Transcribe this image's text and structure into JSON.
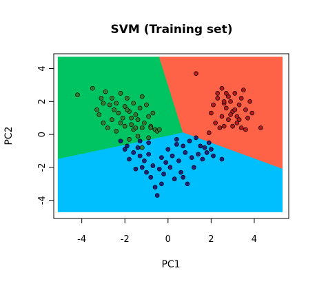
{
  "chart_data": {
    "type": "scatter",
    "title": "SVM (Training set)",
    "xlabel": "PC1",
    "ylabel": "PC2",
    "xlim": [
      -5.3,
      5.6
    ],
    "ylim": [
      -5.1,
      4.9
    ],
    "xticks": [
      -4,
      -2,
      0,
      2,
      4
    ],
    "yticks": [
      -4,
      -2,
      0,
      2,
      4
    ],
    "region_colors": {
      "green": "#00C462",
      "red": "#FF6347",
      "blue": "#00BFFF"
    },
    "regions": {
      "green": [
        [
          -5.1,
          4.7
        ],
        [
          -0.4,
          4.7
        ],
        [
          0.7,
          0.1
        ],
        [
          -5.1,
          -1.5
        ]
      ],
      "red": [
        [
          -0.4,
          4.7
        ],
        [
          5.3,
          4.7
        ],
        [
          5.3,
          -2.1
        ],
        [
          0.7,
          0.1
        ]
      ],
      "blue": [
        [
          -5.1,
          -1.5
        ],
        [
          0.7,
          0.1
        ],
        [
          5.3,
          -2.1
        ],
        [
          5.3,
          -4.7
        ],
        [
          -5.1,
          -4.7
        ]
      ]
    },
    "series": [
      {
        "color": "#2E7D32",
        "points": [
          [
            -4.2,
            2.4
          ],
          [
            -3.5,
            2.8
          ],
          [
            -3.3,
            1.5
          ],
          [
            -3.0,
            1.9
          ],
          [
            -2.9,
            2.6
          ],
          [
            -3.2,
            1.2
          ],
          [
            -2.7,
            1.8
          ],
          [
            -2.6,
            2.2
          ],
          [
            -2.5,
            1.5
          ],
          [
            -2.4,
            1.9
          ],
          [
            -2.3,
            1.3
          ],
          [
            -2.2,
            2.5
          ],
          [
            -2.1,
            1.0
          ],
          [
            -2.0,
            1.7
          ],
          [
            -1.9,
            2.2
          ],
          [
            -1.8,
            1.4
          ],
          [
            -1.7,
            0.6
          ],
          [
            -1.6,
            1.9
          ],
          [
            -1.5,
            1.2
          ],
          [
            -1.4,
            0.9
          ],
          [
            -1.3,
            1.6
          ],
          [
            -1.2,
            2.3
          ],
          [
            -1.1,
            0.7
          ],
          [
            -1.0,
            1.8
          ],
          [
            -0.9,
            1.1
          ],
          [
            -0.8,
            0.5
          ],
          [
            -0.7,
            1.3
          ],
          [
            -0.6,
            0.3
          ],
          [
            -0.5,
            0.2
          ],
          [
            -2.8,
            0.4
          ],
          [
            -2.6,
            0.9
          ],
          [
            -2.4,
            0.2
          ],
          [
            -2.0,
            0.5
          ],
          [
            -1.8,
            -0.3
          ],
          [
            -1.6,
            0.3
          ],
          [
            -1.4,
            -0.1
          ],
          [
            -1.2,
            -0.8
          ],
          [
            -0.9,
            -0.2
          ],
          [
            -0.8,
            0.4
          ],
          [
            -3.0,
            0.7
          ],
          [
            -2.2,
            0.7
          ],
          [
            -1.7,
            1.0
          ],
          [
            -1.2,
            0.4
          ],
          [
            -0.4,
            0.3
          ],
          [
            -3.1,
            2.2
          ],
          [
            -1.9,
            1.5
          ],
          [
            -1.5,
            0.4
          ]
        ]
      },
      {
        "color": "#B71C1C",
        "points": [
          [
            1.3,
            3.7
          ],
          [
            2.3,
            2.5
          ],
          [
            2.5,
            2.8
          ],
          [
            2.6,
            1.9
          ],
          [
            2.7,
            1.6
          ],
          [
            2.8,
            2.3
          ],
          [
            2.9,
            2.0
          ],
          [
            3.0,
            1.4
          ],
          [
            3.1,
            2.5
          ],
          [
            3.2,
            1.1
          ],
          [
            3.3,
            1.8
          ],
          [
            3.4,
            2.2
          ],
          [
            3.5,
            2.7
          ],
          [
            3.6,
            1.5
          ],
          [
            3.7,
            1.0
          ],
          [
            3.8,
            2.0
          ],
          [
            4.3,
            0.4
          ],
          [
            2.0,
            1.3
          ],
          [
            2.2,
            0.7
          ],
          [
            2.4,
            0.4
          ],
          [
            2.6,
            0.5
          ],
          [
            2.8,
            0.9
          ],
          [
            3.0,
            0.5
          ],
          [
            3.2,
            0.7
          ],
          [
            3.4,
            0.4
          ],
          [
            2.5,
            1.1
          ],
          [
            2.9,
            1.2
          ],
          [
            2.1,
            1.8
          ],
          [
            3.6,
            0.3
          ],
          [
            1.9,
            0.1
          ],
          [
            2.3,
            2.2
          ],
          [
            3.1,
            1.5
          ],
          [
            2.7,
            2.5
          ],
          [
            3.9,
            1.3
          ],
          [
            3.3,
            0.9
          ],
          [
            2.6,
            2.0
          ]
        ]
      },
      {
        "color": "#1A237E",
        "points": [
          [
            -2.2,
            -0.4
          ],
          [
            -2.0,
            -0.9
          ],
          [
            -1.9,
            -0.7
          ],
          [
            -1.8,
            -1.5
          ],
          [
            -1.6,
            -1.1
          ],
          [
            -1.5,
            -2.1
          ],
          [
            -1.4,
            -0.8
          ],
          [
            -1.3,
            -1.3
          ],
          [
            -1.2,
            -2.0
          ],
          [
            -1.1,
            -1.6
          ],
          [
            -1.0,
            -2.3
          ],
          [
            -0.9,
            -1.2
          ],
          [
            -0.8,
            -2.6
          ],
          [
            -0.7,
            -1.9
          ],
          [
            -0.6,
            -3.2
          ],
          [
            -0.5,
            -3.7
          ],
          [
            -0.4,
            -2.1
          ],
          [
            -0.3,
            -1.4
          ],
          [
            -0.2,
            -2.4
          ],
          [
            -0.1,
            -1.7
          ],
          [
            0.0,
            -0.9
          ],
          [
            0.1,
            -2.0
          ],
          [
            0.2,
            -1.3
          ],
          [
            0.3,
            -2.7
          ],
          [
            0.4,
            -0.6
          ],
          [
            0.5,
            -1.6
          ],
          [
            0.6,
            -2.3
          ],
          [
            0.7,
            -0.7
          ],
          [
            0.8,
            -1.1
          ],
          [
            0.9,
            -3.0
          ],
          [
            1.0,
            -0.4
          ],
          [
            1.1,
            -1.4
          ],
          [
            1.2,
            -2.0
          ],
          [
            1.3,
            -0.2
          ],
          [
            1.4,
            -1.2
          ],
          [
            1.5,
            -0.7
          ],
          [
            1.6,
            -1.5
          ],
          [
            1.7,
            -0.8
          ],
          [
            1.8,
            -1.1
          ],
          [
            1.9,
            -0.5
          ],
          [
            2.0,
            -0.9
          ],
          [
            2.1,
            -1.3
          ],
          [
            2.5,
            -1.5
          ],
          [
            -1.3,
            -0.4
          ],
          [
            -0.9,
            -0.5
          ],
          [
            0.4,
            -0.3
          ],
          [
            -0.3,
            -3.0
          ],
          [
            0.7,
            -2.6
          ]
        ]
      }
    ]
  }
}
